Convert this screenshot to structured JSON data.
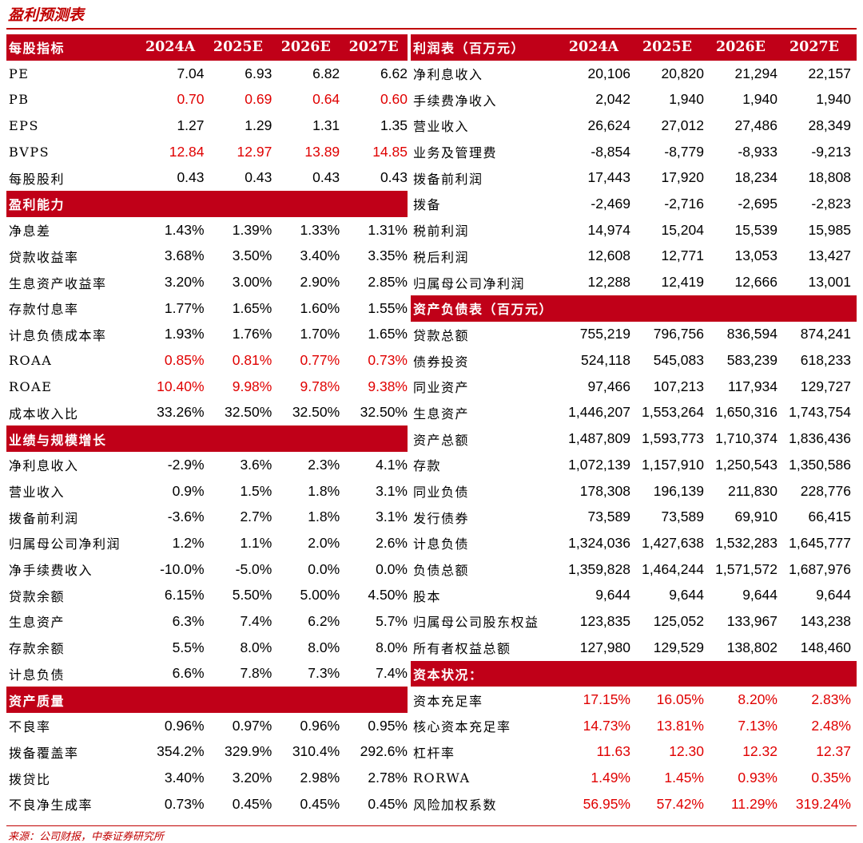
{
  "title": "盈利预测表",
  "footer": "来源：公司财报，中泰证券研究所",
  "left": [
    {
      "type": "header",
      "label": "每股指标",
      "values": [
        "2024A",
        "2025E",
        "2026E",
        "2027E"
      ]
    },
    {
      "label": "PE",
      "values": [
        "7.04",
        "6.93",
        "6.82",
        "6.62"
      ]
    },
    {
      "label": "PB",
      "values": [
        "0.70",
        "0.69",
        "0.64",
        "0.60"
      ],
      "red": true
    },
    {
      "label": "EPS",
      "values": [
        "1.27",
        "1.29",
        "1.31",
        "1.35"
      ]
    },
    {
      "label": "BVPS",
      "values": [
        "12.84",
        "12.97",
        "13.89",
        "14.85"
      ],
      "red": true
    },
    {
      "label": "每股股利",
      "values": [
        "0.43",
        "0.43",
        "0.43",
        "0.43"
      ]
    },
    {
      "type": "header",
      "label": "盈利能力",
      "values": [
        "",
        "",
        "",
        ""
      ]
    },
    {
      "label": "净息差",
      "values": [
        "1.43%",
        "1.39%",
        "1.33%",
        "1.31%"
      ]
    },
    {
      "label": "贷款收益率",
      "values": [
        "3.68%",
        "3.50%",
        "3.40%",
        "3.35%"
      ]
    },
    {
      "label": "生息资产收益率",
      "values": [
        "3.20%",
        "3.00%",
        "2.90%",
        "2.85%"
      ]
    },
    {
      "label": "存款付息率",
      "values": [
        "1.77%",
        "1.65%",
        "1.60%",
        "1.55%"
      ]
    },
    {
      "label": "计息负债成本率",
      "values": [
        "1.93%",
        "1.76%",
        "1.70%",
        "1.65%"
      ]
    },
    {
      "label": "ROAA",
      "values": [
        "0.85%",
        "0.81%",
        "0.77%",
        "0.73%"
      ],
      "red": true
    },
    {
      "label": "ROAE",
      "values": [
        "10.40%",
        "9.98%",
        "9.78%",
        "9.38%"
      ],
      "red": true
    },
    {
      "label": "成本收入比",
      "values": [
        "33.26%",
        "32.50%",
        "32.50%",
        "32.50%"
      ]
    },
    {
      "type": "header",
      "label": "业绩与规模增长",
      "values": [
        "",
        "",
        "",
        ""
      ]
    },
    {
      "label": "净利息收入",
      "values": [
        "-2.9%",
        "3.6%",
        "2.3%",
        "4.1%"
      ]
    },
    {
      "label": "营业收入",
      "values": [
        "0.9%",
        "1.5%",
        "1.8%",
        "3.1%"
      ]
    },
    {
      "label": "拨备前利润",
      "values": [
        "-3.6%",
        "2.7%",
        "1.8%",
        "3.1%"
      ]
    },
    {
      "label": "归属母公司净利润",
      "values": [
        "1.2%",
        "1.1%",
        "2.0%",
        "2.6%"
      ]
    },
    {
      "label": "净手续费收入",
      "values": [
        "-10.0%",
        "-5.0%",
        "0.0%",
        "0.0%"
      ]
    },
    {
      "label": "贷款余额",
      "values": [
        "6.15%",
        "5.50%",
        "5.00%",
        "4.50%"
      ]
    },
    {
      "label": "生息资产",
      "values": [
        "6.3%",
        "7.4%",
        "6.2%",
        "5.7%"
      ]
    },
    {
      "label": "存款余额",
      "values": [
        "5.5%",
        "8.0%",
        "8.0%",
        "8.0%"
      ]
    },
    {
      "label": "计息负债",
      "values": [
        "6.6%",
        "7.8%",
        "7.3%",
        "7.4%"
      ]
    },
    {
      "type": "header",
      "label": "资产质量",
      "values": [
        "",
        "",
        "",
        ""
      ]
    },
    {
      "label": "不良率",
      "values": [
        "0.96%",
        "0.97%",
        "0.96%",
        "0.95%"
      ]
    },
    {
      "label": "拨备覆盖率",
      "values": [
        "354.2%",
        "329.9%",
        "310.4%",
        "292.6%"
      ]
    },
    {
      "label": "拨贷比",
      "values": [
        "3.40%",
        "3.20%",
        "2.98%",
        "2.78%"
      ]
    },
    {
      "label": "不良净生成率",
      "values": [
        "0.73%",
        "0.45%",
        "0.45%",
        "0.45%"
      ]
    }
  ],
  "right": [
    {
      "type": "header",
      "label": "利润表（百万元）",
      "values": [
        "2024A",
        "2025E",
        "2026E",
        "2027E"
      ]
    },
    {
      "label": "净利息收入",
      "values": [
        "20,106",
        "20,820",
        "21,294",
        "22,157"
      ]
    },
    {
      "label": "手续费净收入",
      "values": [
        "2,042",
        "1,940",
        "1,940",
        "1,940"
      ]
    },
    {
      "label": "营业收入",
      "values": [
        "26,624",
        "27,012",
        "27,486",
        "28,349"
      ]
    },
    {
      "label": "业务及管理费",
      "values": [
        "-8,854",
        "-8,779",
        "-8,933",
        "-9,213"
      ]
    },
    {
      "label": "拨备前利润",
      "values": [
        "17,443",
        "17,920",
        "18,234",
        "18,808"
      ]
    },
    {
      "label": "拨备",
      "values": [
        "-2,469",
        "-2,716",
        "-2,695",
        "-2,823"
      ]
    },
    {
      "label": "税前利润",
      "values": [
        "14,974",
        "15,204",
        "15,539",
        "15,985"
      ]
    },
    {
      "label": "税后利润",
      "values": [
        "12,608",
        "12,771",
        "13,053",
        "13,427"
      ]
    },
    {
      "label": "归属母公司净利润",
      "values": [
        "12,288",
        "12,419",
        "12,666",
        "13,001"
      ]
    },
    {
      "type": "header",
      "label": "资产负债表（百万元）",
      "values": [
        "",
        "",
        "",
        ""
      ]
    },
    {
      "label": "贷款总额",
      "values": [
        "755,219",
        "796,756",
        "836,594",
        "874,241"
      ]
    },
    {
      "label": "债券投资",
      "values": [
        "524,118",
        "545,083",
        "583,239",
        "618,233"
      ]
    },
    {
      "label": "同业资产",
      "values": [
        "97,466",
        "107,213",
        "117,934",
        "129,727"
      ]
    },
    {
      "label": "生息资产",
      "values": [
        "1,446,207",
        "1,553,264",
        "1,650,316",
        "1,743,754"
      ]
    },
    {
      "label": "资产总额",
      "values": [
        "1,487,809",
        "1,593,773",
        "1,710,374",
        "1,836,436"
      ]
    },
    {
      "label": "存款",
      "values": [
        "1,072,139",
        "1,157,910",
        "1,250,543",
        "1,350,586"
      ]
    },
    {
      "label": "同业负债",
      "values": [
        "178,308",
        "196,139",
        "211,830",
        "228,776"
      ]
    },
    {
      "label": "发行债券",
      "values": [
        "73,589",
        "73,589",
        "69,910",
        "66,415"
      ]
    },
    {
      "label": "计息负债",
      "values": [
        "1,324,036",
        "1,427,638",
        "1,532,283",
        "1,645,777"
      ]
    },
    {
      "label": "负债总额",
      "values": [
        "1,359,828",
        "1,464,244",
        "1,571,572",
        "1,687,976"
      ]
    },
    {
      "label": "股本",
      "values": [
        "9,644",
        "9,644",
        "9,644",
        "9,644"
      ]
    },
    {
      "label": "归属母公司股东权益",
      "values": [
        "123,835",
        "125,052",
        "133,967",
        "143,238"
      ]
    },
    {
      "label": "所有者权益总额",
      "values": [
        "127,980",
        "129,529",
        "138,802",
        "148,460"
      ]
    },
    {
      "type": "header",
      "label": "资本状况：",
      "values": [
        "",
        "",
        "",
        ""
      ]
    },
    {
      "label": "资本充足率",
      "values": [
        "17.15%",
        "16.05%",
        "8.20%",
        "2.83%"
      ],
      "red": true
    },
    {
      "label": "核心资本充足率",
      "values": [
        "14.73%",
        "13.81%",
        "7.13%",
        "2.48%"
      ],
      "red": true
    },
    {
      "label": "杠杆率",
      "values": [
        "11.63",
        "12.30",
        "12.32",
        "12.37"
      ],
      "red": true
    },
    {
      "label": "RORWA",
      "values": [
        "1.49%",
        "1.45%",
        "0.93%",
        "0.35%"
      ],
      "red": true
    },
    {
      "label": "风险加权系数",
      "values": [
        "56.95%",
        "57.42%",
        "11.29%",
        "319.24%"
      ],
      "red": true
    }
  ]
}
